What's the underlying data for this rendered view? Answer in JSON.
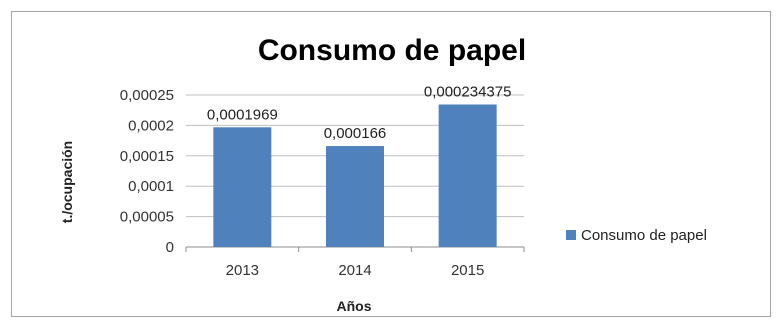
{
  "chart_data": {
    "type": "bar",
    "title": "Consumo de papel",
    "xlabel": "Años",
    "ylabel": "t./ocupación",
    "categories": [
      "2013",
      "2014",
      "2015"
    ],
    "series": [
      {
        "name": "Consumo de papel",
        "values": [
          0.0001969,
          0.000166,
          0.000234375
        ],
        "data_labels": [
          "0,0001969",
          "0,000166",
          "0,000234375"
        ],
        "color": "#4f81bd"
      }
    ],
    "ylim": [
      0,
      0.00025
    ],
    "y_ticks": [
      0,
      5e-05,
      0.0001,
      0.00015,
      0.0002,
      0.00025
    ],
    "y_tick_labels": [
      "0",
      "0,00005",
      "0,0001",
      "0,00015",
      "0,0002",
      "0,00025"
    ],
    "grid": true,
    "legend_position": "right"
  }
}
